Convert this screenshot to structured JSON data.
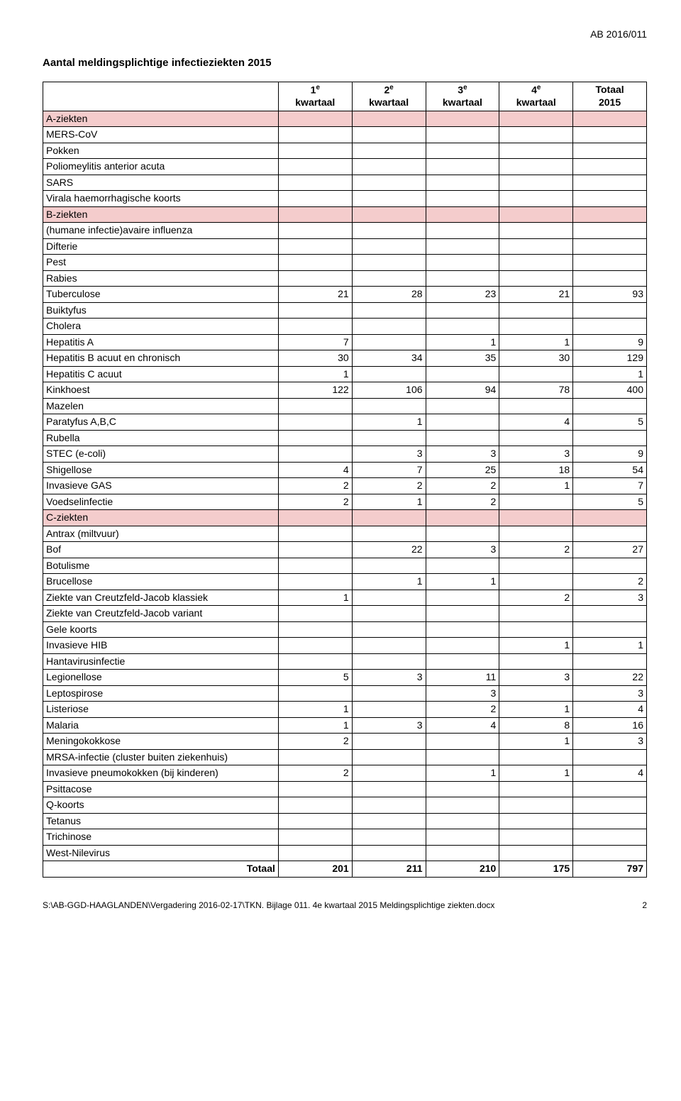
{
  "header": {
    "doc_code": "AB 2016/011",
    "title": "Aantal meldingsplichtige infectieziekten 2015"
  },
  "table": {
    "columns": [
      "",
      "1e kwartaal",
      "2e kwartaal",
      "3e kwartaal",
      "4e kwartaal",
      "Totaal 2015"
    ],
    "rows": [
      {
        "section": true,
        "label": "A-ziekten"
      },
      {
        "label": "MERS-CoV"
      },
      {
        "label": "Pokken"
      },
      {
        "label": "Poliomeylitis anterior acuta"
      },
      {
        "label": "SARS"
      },
      {
        "label": "Virala haemorrhagische koorts"
      },
      {
        "section": true,
        "label": "B-ziekten"
      },
      {
        "label": "(humane infectie)avaire influenza"
      },
      {
        "label": "Difterie"
      },
      {
        "label": "Pest"
      },
      {
        "label": "Rabies"
      },
      {
        "label": "Tuberculose",
        "v": [
          "21",
          "28",
          "23",
          "21",
          "93"
        ]
      },
      {
        "label": "Buiktyfus"
      },
      {
        "label": "Cholera"
      },
      {
        "label": "Hepatitis A",
        "v": [
          "7",
          "",
          "1",
          "1",
          "9"
        ]
      },
      {
        "label": "Hepatitis B acuut en chronisch",
        "v": [
          "30",
          "34",
          "35",
          "30",
          "129"
        ]
      },
      {
        "label": "Hepatitis C acuut",
        "v": [
          "1",
          "",
          "",
          "",
          "1"
        ]
      },
      {
        "label": "Kinkhoest",
        "v": [
          "122",
          "106",
          "94",
          "78",
          "400"
        ]
      },
      {
        "label": "Mazelen"
      },
      {
        "label": "Paratyfus A,B,C",
        "v": [
          "",
          "1",
          "",
          "4",
          "5"
        ]
      },
      {
        "label": "Rubella"
      },
      {
        "label": "STEC (e-coli)",
        "v": [
          "",
          "3",
          "3",
          "3",
          "9"
        ]
      },
      {
        "label": "Shigellose",
        "v": [
          "4",
          "7",
          "25",
          "18",
          "54"
        ]
      },
      {
        "label": "Invasieve GAS",
        "v": [
          "2",
          "2",
          "2",
          "1",
          "7"
        ]
      },
      {
        "label": "Voedselinfectie",
        "v": [
          "2",
          "1",
          "2",
          "",
          "5"
        ]
      },
      {
        "section": true,
        "label": "C-ziekten"
      },
      {
        "label": "Antrax (miltvuur)"
      },
      {
        "label": "Bof",
        "v": [
          "",
          "22",
          "3",
          "2",
          "27"
        ]
      },
      {
        "label": "Botulisme"
      },
      {
        "label": "Brucellose",
        "v": [
          "",
          "1",
          "1",
          "",
          "2"
        ]
      },
      {
        "label": "Ziekte van Creutzfeld-Jacob klassiek",
        "v": [
          "1",
          "",
          "",
          "2",
          "3"
        ]
      },
      {
        "label": "Ziekte van Creutzfeld-Jacob variant"
      },
      {
        "label": "Gele koorts"
      },
      {
        "label": "Invasieve HIB",
        "v": [
          "",
          "",
          "",
          "1",
          "1"
        ]
      },
      {
        "label": "Hantavirusinfectie"
      },
      {
        "label": "Legionellose",
        "v": [
          "5",
          "3",
          "11",
          "3",
          "22"
        ]
      },
      {
        "label": "Leptospirose",
        "v": [
          "",
          "",
          "3",
          "",
          "3"
        ]
      },
      {
        "label": "Listeriose",
        "v": [
          "1",
          "",
          "2",
          "1",
          "4"
        ]
      },
      {
        "label": "Malaria",
        "v": [
          "1",
          "3",
          "4",
          "8",
          "16"
        ]
      },
      {
        "label": "Meningokokkose",
        "v": [
          "2",
          "",
          "",
          "1",
          "3"
        ]
      },
      {
        "label": "MRSA-infectie (cluster buiten ziekenhuis)"
      },
      {
        "label": "Invasieve pneumokokken (bij kinderen)",
        "v": [
          "2",
          "",
          "1",
          "1",
          "4"
        ]
      },
      {
        "label": "Psittacose"
      },
      {
        "label": "Q-koorts"
      },
      {
        "label": "Tetanus"
      },
      {
        "label": "Trichinose"
      },
      {
        "label": "West-Nilevirus"
      },
      {
        "total": true,
        "label": "Totaal",
        "v": [
          "201",
          "211",
          "210",
          "175",
          "797"
        ]
      }
    ]
  },
  "footer": {
    "path": "S:\\AB-GGD-HAAGLANDEN\\Vergadering 2016-02-17\\TKN. Bijlage 011.  4e kwartaal 2015 Meldingsplichtige ziekten.docx",
    "page": "2"
  },
  "styling": {
    "section_bg": "#f4cccc",
    "border_color": "#000000",
    "font_size_body": 14,
    "font_size_footer": 12
  }
}
